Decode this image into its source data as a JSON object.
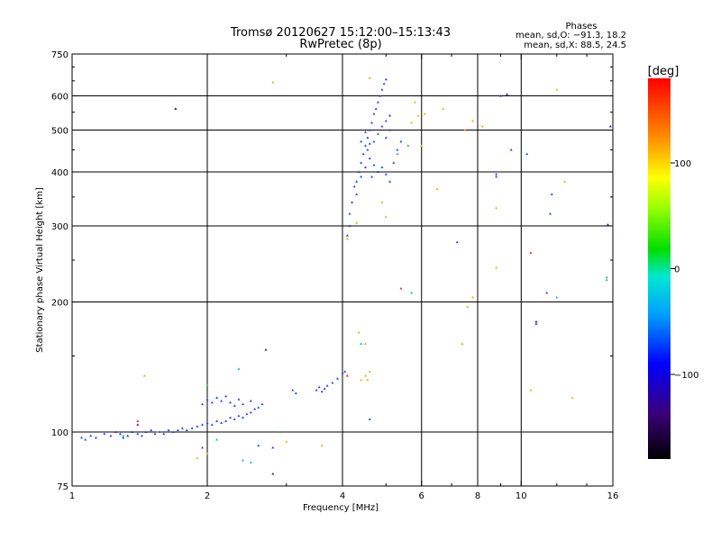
{
  "chart_data": {
    "type": "scatter",
    "title": "Tromsø 20120627 15:12:00–15:13:43",
    "subtitle": "RwPretec (8p)",
    "phases_box": {
      "heading": "Phases",
      "line1": "mean, sd,O: −91.3, 18.2",
      "line2": "mean, sd,X:  88.5, 24.5"
    },
    "xlabel": "Frequency [MHz]",
    "ylabel": "Stationary phase Virtual Height [km]",
    "x_scale": "log",
    "y_scale": "log",
    "xlim": [
      1,
      16
    ],
    "ylim": [
      75,
      750
    ],
    "x_ticks": [
      1,
      2,
      4,
      6,
      8,
      10,
      16
    ],
    "x_tick_labels": [
      "1",
      "2",
      "4",
      "6",
      "8",
      "10",
      "16"
    ],
    "y_ticks": [
      75,
      100,
      200,
      300,
      400,
      500,
      600,
      750
    ],
    "y_tick_labels": [
      "75",
      "100",
      "200",
      "300",
      "400",
      "500",
      "600",
      "750"
    ],
    "grid_x": [
      2,
      4,
      6,
      8,
      10
    ],
    "grid_y": [
      100,
      200,
      300,
      400,
      500,
      600
    ],
    "colorbar": {
      "label": "[deg]",
      "range": [
        -180,
        180
      ],
      "ticks": [
        100,
        0,
        -100
      ],
      "tick_labels": [
        "100",
        "0",
        "−100"
      ]
    },
    "series": [
      {
        "color_group": "O-mode",
        "color": "#1f3bff",
        "points": [
          [
            1.05,
            97
          ],
          [
            1.07,
            96
          ],
          [
            1.1,
            98
          ],
          [
            1.13,
            97
          ],
          [
            1.18,
            99
          ],
          [
            1.22,
            98
          ],
          [
            1.25,
            100
          ],
          [
            1.28,
            99
          ],
          [
            1.3,
            97
          ],
          [
            1.33,
            98
          ],
          [
            1.36,
            100
          ],
          [
            1.4,
            99
          ],
          [
            1.43,
            98
          ],
          [
            1.46,
            100
          ],
          [
            1.5,
            101
          ],
          [
            1.53,
            99
          ],
          [
            1.56,
            100
          ],
          [
            1.6,
            99
          ],
          [
            1.64,
            101
          ],
          [
            1.68,
            100
          ],
          [
            1.72,
            101
          ],
          [
            1.76,
            102
          ],
          [
            1.8,
            101
          ],
          [
            1.85,
            102
          ],
          [
            1.9,
            103
          ],
          [
            1.95,
            104
          ],
          [
            2.0,
            105
          ],
          [
            2.05,
            104
          ],
          [
            2.1,
            106
          ],
          [
            2.15,
            105
          ],
          [
            2.2,
            106
          ],
          [
            2.25,
            108
          ],
          [
            2.3,
            107
          ],
          [
            2.35,
            109
          ],
          [
            2.4,
            108
          ],
          [
            2.45,
            110
          ],
          [
            2.5,
            111
          ],
          [
            2.55,
            113
          ],
          [
            2.6,
            114
          ],
          [
            2.65,
            116
          ],
          [
            1.95,
            116
          ],
          [
            2.0,
            119
          ],
          [
            2.05,
            117
          ],
          [
            2.1,
            120
          ],
          [
            2.15,
            118
          ],
          [
            2.2,
            121
          ],
          [
            2.25,
            117
          ],
          [
            2.3,
            115
          ],
          [
            2.35,
            119
          ],
          [
            2.4,
            116
          ],
          [
            2.5,
            118
          ],
          [
            3.1,
            125
          ],
          [
            3.15,
            123
          ],
          [
            3.5,
            125
          ],
          [
            3.55,
            127
          ],
          [
            3.6,
            124
          ],
          [
            3.65,
            126
          ],
          [
            3.7,
            128
          ],
          [
            3.8,
            130
          ],
          [
            3.9,
            133
          ],
          [
            4.0,
            137
          ],
          [
            4.05,
            138
          ],
          [
            4.1,
            285
          ],
          [
            4.15,
            300
          ],
          [
            4.15,
            320
          ],
          [
            4.2,
            340
          ],
          [
            4.25,
            370
          ],
          [
            4.3,
            380
          ],
          [
            4.35,
            400
          ],
          [
            4.4,
            420
          ],
          [
            4.45,
            440
          ],
          [
            4.5,
            460
          ],
          [
            4.55,
            480
          ],
          [
            4.6,
            500
          ],
          [
            4.65,
            520
          ],
          [
            4.7,
            545
          ],
          [
            4.75,
            560
          ],
          [
            4.8,
            580
          ],
          [
            4.85,
            600
          ],
          [
            4.9,
            620
          ],
          [
            4.95,
            640
          ],
          [
            5.0,
            655
          ],
          [
            4.3,
            355
          ],
          [
            4.4,
            390
          ],
          [
            4.5,
            410
          ],
          [
            4.6,
            430
          ],
          [
            4.7,
            415
          ],
          [
            4.8,
            400
          ],
          [
            4.9,
            410
          ],
          [
            5.0,
            395
          ],
          [
            5.1,
            380
          ],
          [
            5.2,
            420
          ],
          [
            5.3,
            450
          ],
          [
            5.4,
            470
          ],
          [
            5.0,
            480
          ],
          [
            5.1,
            500
          ],
          [
            4.6,
            465
          ],
          [
            4.7,
            470
          ],
          [
            4.8,
            490
          ],
          [
            4.9,
            510
          ],
          [
            5.0,
            525
          ],
          [
            5.1,
            540
          ],
          [
            4.4,
            470
          ],
          [
            4.5,
            495
          ],
          [
            4.55,
            450
          ],
          [
            4.65,
            390
          ],
          [
            1.7,
            560
          ],
          [
            9.0,
            600
          ],
          [
            8.8,
            390
          ],
          [
            8.8,
            395
          ],
          [
            11.7,
            355
          ],
          [
            11.6,
            320
          ],
          [
            7.2,
            275
          ],
          [
            9.5,
            450
          ],
          [
            10.3,
            440
          ],
          [
            11.4,
            210
          ],
          [
            10.8,
            178
          ],
          [
            4.6,
            107
          ],
          [
            2.8,
            92
          ],
          [
            2.6,
            93
          ],
          [
            1.95,
            92
          ]
        ]
      },
      {
        "color_group": "X-mode",
        "color": "#e8b000",
        "points": [
          [
            4.5,
            135
          ],
          [
            4.55,
            132
          ],
          [
            4.6,
            138
          ],
          [
            4.4,
            132
          ],
          [
            5.8,
            580
          ],
          [
            5.9,
            540
          ],
          [
            6.0,
            460
          ],
          [
            6.1,
            545
          ],
          [
            5.7,
            520
          ],
          [
            6.5,
            365
          ],
          [
            6.7,
            560
          ],
          [
            7.5,
            500
          ],
          [
            7.8,
            525
          ],
          [
            8.2,
            510
          ],
          [
            4.9,
            340
          ],
          [
            5.0,
            315
          ],
          [
            4.6,
            660
          ],
          [
            2.8,
            645
          ],
          [
            12.5,
            380
          ],
          [
            13.0,
            120
          ],
          [
            10.5,
            125
          ],
          [
            8.8,
            240
          ],
          [
            7.8,
            205
          ],
          [
            7.6,
            195
          ],
          [
            7.4,
            160
          ],
          [
            1.45,
            135
          ],
          [
            3.0,
            95
          ],
          [
            4.1,
            280
          ],
          [
            4.3,
            305
          ],
          [
            8.8,
            330
          ],
          [
            12.0,
            620
          ],
          [
            4.5,
            160
          ],
          [
            4.35,
            170
          ],
          [
            1.55,
            100
          ],
          [
            1.9,
            87
          ],
          [
            2.0,
            89
          ],
          [
            3.6,
            93
          ]
        ]
      },
      {
        "color_group": "other",
        "color": "#11b8c8",
        "points": [
          [
            2.35,
            140
          ],
          [
            5.7,
            210
          ],
          [
            12.0,
            205
          ],
          [
            15.5,
            225
          ],
          [
            1.3,
            98
          ],
          [
            2.1,
            96
          ],
          [
            4.4,
            160
          ],
          [
            2.4,
            86
          ],
          [
            2.5,
            85
          ]
        ]
      },
      {
        "color_group": "other",
        "color": "#3d1a8a",
        "points": [
          [
            15.6,
            302
          ],
          [
            15.8,
            510
          ],
          [
            10.8,
            180
          ],
          [
            2.7,
            155
          ],
          [
            9.3,
            605
          ],
          [
            1.4,
            104
          ],
          [
            2.8,
            80
          ],
          [
            1.7,
            560
          ]
        ]
      },
      {
        "color_group": "other",
        "color": "#e02020",
        "points": [
          [
            5.4,
            215
          ],
          [
            1.4,
            106
          ],
          [
            10.5,
            260
          ],
          [
            4.1,
            135
          ]
        ]
      },
      {
        "color_group": "other",
        "color": "#22c422",
        "points": [
          [
            2.0,
            128
          ],
          [
            5.6,
            460
          ],
          [
            5.3,
            440
          ],
          [
            15.5,
            228
          ],
          [
            2.9,
            100
          ]
        ]
      }
    ]
  }
}
